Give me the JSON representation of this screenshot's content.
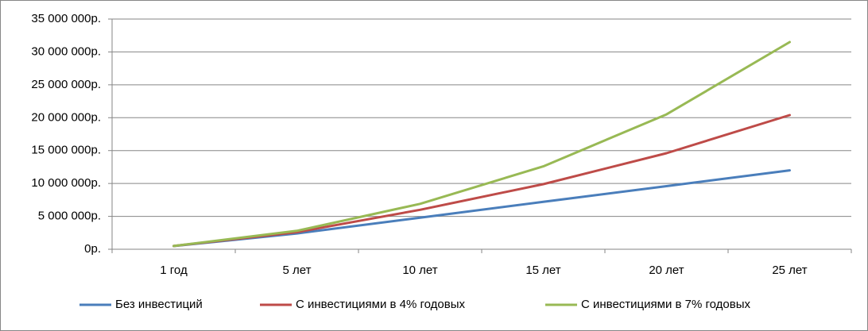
{
  "chart_data": {
    "type": "line",
    "categories": [
      "1 год",
      "5 лет",
      "10 лет",
      "15 лет",
      "20 лет",
      "25 лет"
    ],
    "series": [
      {
        "name": "Без инвестиций",
        "color": "#4a7ebb",
        "values": [
          480000,
          2400000,
          4800000,
          7200000,
          9600000,
          12000000
        ]
      },
      {
        "name": "С инвестициями в 4% годовых",
        "color": "#be4b48",
        "values": [
          500000,
          2600000,
          6000000,
          9900000,
          14600000,
          20400000
        ]
      },
      {
        "name": "С инвестициями в 7% годовых",
        "color": "#98b954",
        "values": [
          500000,
          2800000,
          6900000,
          12600000,
          20500000,
          31500000
        ]
      }
    ],
    "ylim": [
      0,
      35000000
    ],
    "yticks": [
      {
        "value": 0,
        "label": "0р."
      },
      {
        "value": 5000000,
        "label": "5 000 000р."
      },
      {
        "value": 10000000,
        "label": "10 000 000р."
      },
      {
        "value": 15000000,
        "label": "15 000 000р."
      },
      {
        "value": 20000000,
        "label": "20 000 000р."
      },
      {
        "value": 25000000,
        "label": "25 000 000р."
      },
      {
        "value": 30000000,
        "label": "30 000 000р."
      },
      {
        "value": 35000000,
        "label": "35 000 000р."
      }
    ],
    "grid": true,
    "legend": "bottom"
  }
}
